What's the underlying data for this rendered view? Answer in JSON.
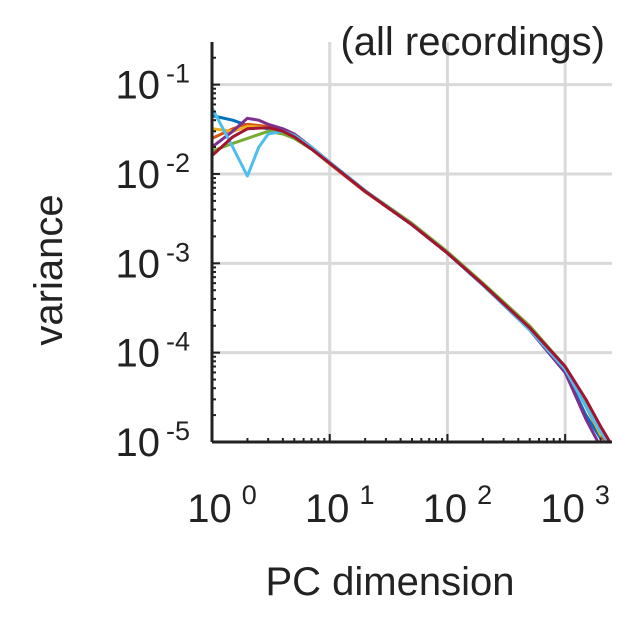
{
  "chart_data": {
    "type": "line",
    "title": "(all recordings)",
    "xlabel": "PC dimension",
    "ylabel": "variance",
    "xscale": "log",
    "yscale": "log",
    "xlim": [
      1,
      2500
    ],
    "ylim": [
      1e-05,
      0.3
    ],
    "grid": true,
    "legend": "none",
    "x_ticks": [
      {
        "value": 1,
        "base": "10",
        "exp": "0"
      },
      {
        "value": 10,
        "base": "10",
        "exp": "1"
      },
      {
        "value": 100,
        "base": "10",
        "exp": "2"
      },
      {
        "value": 1000,
        "base": "10",
        "exp": "3"
      }
    ],
    "y_ticks": [
      {
        "value": 1e-05,
        "base": "10",
        "exp": "-5"
      },
      {
        "value": 0.0001,
        "base": "10",
        "exp": "-4"
      },
      {
        "value": 0.001,
        "base": "10",
        "exp": "-3"
      },
      {
        "value": 0.01,
        "base": "10",
        "exp": "-2"
      },
      {
        "value": 0.1,
        "base": "10",
        "exp": "-1"
      }
    ],
    "series": [
      {
        "color": "#0072bd",
        "x": [
          1,
          1.5,
          2,
          3,
          4,
          5,
          7,
          10,
          20,
          50,
          100,
          200,
          500,
          1000,
          1500,
          2000
        ],
        "y": [
          0.045,
          0.04,
          0.035,
          0.032,
          0.03,
          0.027,
          0.02,
          0.0135,
          0.0065,
          0.0027,
          0.0013,
          0.00058,
          0.00018,
          6e-05,
          2e-05,
          1.1e-05
        ]
      },
      {
        "color": "#d95319",
        "x": [
          1,
          1.5,
          2,
          3,
          4,
          5,
          7,
          10,
          20,
          50,
          100,
          200,
          500,
          1000,
          1500,
          2000,
          2200
        ],
        "y": [
          0.025,
          0.032,
          0.036,
          0.034,
          0.03,
          0.026,
          0.019,
          0.013,
          0.0063,
          0.0027,
          0.0013,
          0.00058,
          0.00019,
          6.5e-05,
          2.5e-05,
          1.2e-05,
          1e-05
        ]
      },
      {
        "color": "#edb120",
        "x": [
          1,
          1.5,
          2,
          3,
          4,
          5,
          7,
          10,
          20,
          50,
          100,
          200,
          500,
          1000,
          1500,
          2000
        ],
        "y": [
          0.032,
          0.03,
          0.034,
          0.033,
          0.029,
          0.025,
          0.019,
          0.0132,
          0.0064,
          0.0027,
          0.0013,
          0.00058,
          0.00019,
          6.6e-05,
          2.6e-05,
          1.2e-05
        ]
      },
      {
        "color": "#7e2f8e",
        "x": [
          1,
          1.5,
          2,
          2.5,
          3,
          4,
          5,
          7,
          10,
          20,
          50,
          100,
          200,
          500,
          1000,
          1500,
          1900
        ],
        "y": [
          0.02,
          0.03,
          0.042,
          0.04,
          0.036,
          0.032,
          0.028,
          0.02,
          0.0135,
          0.0064,
          0.0027,
          0.0013,
          0.00057,
          0.00018,
          6e-05,
          1.8e-05,
          1e-05
        ]
      },
      {
        "color": "#77ac30",
        "x": [
          1,
          1.5,
          2,
          3,
          4,
          5,
          7,
          10,
          20,
          50,
          100,
          200,
          500,
          1000,
          1500,
          2000,
          2300
        ],
        "y": [
          0.018,
          0.022,
          0.025,
          0.03,
          0.028,
          0.025,
          0.019,
          0.0132,
          0.0065,
          0.0028,
          0.00135,
          0.0006,
          0.0002,
          7e-05,
          2.8e-05,
          1.3e-05,
          1e-05
        ]
      },
      {
        "color": "#4dbeee",
        "x": [
          1,
          1.5,
          2,
          2.5,
          3,
          4,
          5,
          7,
          10,
          20,
          50,
          100,
          200,
          500,
          1000,
          1500,
          2000,
          2300
        ],
        "y": [
          0.055,
          0.02,
          0.0095,
          0.02,
          0.028,
          0.03,
          0.027,
          0.02,
          0.0135,
          0.0065,
          0.0027,
          0.0013,
          0.00057,
          0.00018,
          6.5e-05,
          2.5e-05,
          1.3e-05,
          1e-05
        ]
      },
      {
        "color": "#a2142f",
        "x": [
          1,
          1.5,
          2,
          3,
          4,
          5,
          7,
          10,
          20,
          50,
          100,
          200,
          500,
          1000,
          1500,
          2000,
          2400
        ],
        "y": [
          0.016,
          0.026,
          0.032,
          0.033,
          0.03,
          0.026,
          0.019,
          0.0132,
          0.0064,
          0.0027,
          0.0013,
          0.00058,
          0.00019,
          7e-05,
          3e-05,
          1.5e-05,
          1e-05
        ]
      }
    ]
  }
}
